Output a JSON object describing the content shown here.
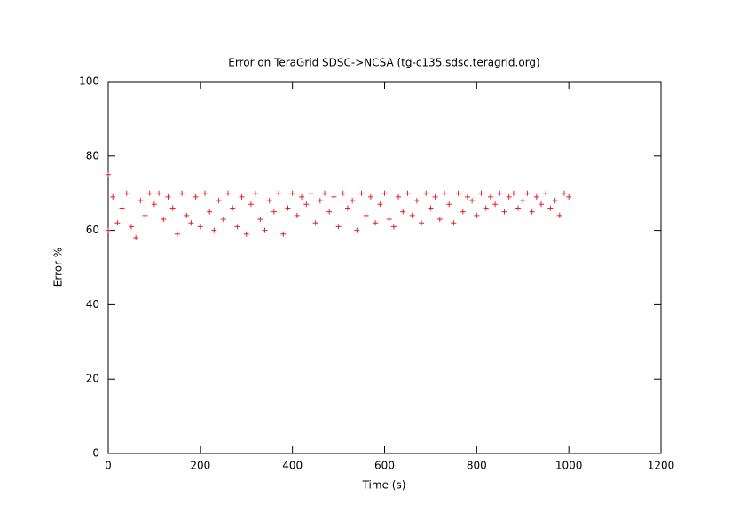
{
  "chart_data": {
    "type": "scatter",
    "title": "Error on TeraGrid SDSC->NCSA (tg-c135.sdsc.teragrid.org)",
    "xlabel": "Time (s)",
    "ylabel": "Error %",
    "color": "#e8202a",
    "marker": "+",
    "x": [
      0,
      0,
      10,
      20,
      30,
      40,
      50,
      60,
      70,
      80,
      90,
      100,
      110,
      120,
      130,
      140,
      150,
      160,
      170,
      180,
      190,
      200,
      210,
      220,
      230,
      240,
      250,
      260,
      270,
      280,
      290,
      300,
      310,
      320,
      330,
      340,
      350,
      360,
      370,
      380,
      390,
      400,
      410,
      420,
      430,
      440,
      450,
      460,
      470,
      480,
      490,
      500,
      510,
      520,
      530,
      540,
      550,
      560,
      570,
      580,
      590,
      600,
      610,
      620,
      630,
      640,
      650,
      660,
      670,
      680,
      690,
      700,
      710,
      720,
      730,
      740,
      750,
      760,
      770,
      780,
      790,
      800,
      810,
      820,
      830,
      840,
      850,
      860,
      870,
      880,
      890,
      900,
      910,
      920,
      930,
      940,
      950,
      960,
      970,
      980,
      990,
      1000
    ],
    "values": [
      75,
      60,
      69,
      62,
      66,
      70,
      61,
      58,
      68,
      64,
      70,
      67,
      70,
      63,
      69,
      66,
      59,
      70,
      64,
      62,
      69,
      61,
      70,
      65,
      60,
      68,
      63,
      70,
      66,
      61,
      69,
      59,
      67,
      70,
      63,
      60,
      68,
      65,
      70,
      59,
      66,
      70,
      64,
      69,
      67,
      70,
      62,
      68,
      70,
      65,
      69,
      61,
      70,
      66,
      68,
      60,
      70,
      64,
      69,
      62,
      67,
      70,
      63,
      61,
      69,
      65,
      70,
      64,
      68,
      62,
      70,
      66,
      69,
      63,
      70,
      67,
      62,
      70,
      65,
      69,
      68,
      64,
      70,
      66,
      69,
      67,
      70,
      65,
      69,
      70,
      66,
      68,
      70,
      65,
      69,
      67,
      70,
      66,
      68,
      64,
      70,
      69
    ],
    "xlim": [
      0,
      1200
    ],
    "xticks": [
      0,
      200,
      400,
      600,
      800,
      1000,
      1200
    ],
    "ylim": [
      0,
      100
    ],
    "yticks": [
      0,
      20,
      40,
      60,
      80,
      100
    ]
  }
}
